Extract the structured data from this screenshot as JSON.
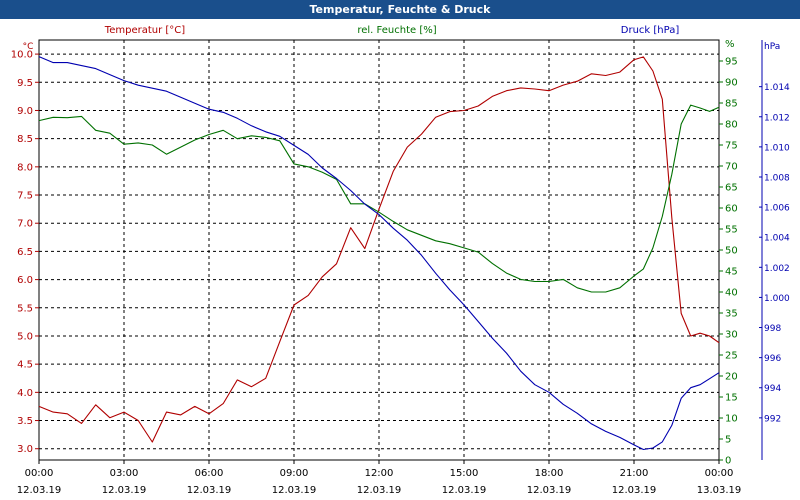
{
  "window": {
    "title": "Temperatur, Feuchte & Druck"
  },
  "colors": {
    "temperature": "#b00000",
    "humidity": "#007000",
    "pressure": "#0000b0",
    "titlebar": "#1a4f8c"
  },
  "chart_data": {
    "type": "line",
    "title": "Temperatur, Feuchte & Druck",
    "x_ticks": [
      {
        "time": "00:00",
        "date": "12.03.19"
      },
      {
        "time": "03:00",
        "date": "12.03.19"
      },
      {
        "time": "06:00",
        "date": "12.03.19"
      },
      {
        "time": "09:00",
        "date": "12.03.19"
      },
      {
        "time": "12:00",
        "date": "12.03.19"
      },
      {
        "time": "15:00",
        "date": "12.03.19"
      },
      {
        "time": "18:00",
        "date": "12.03.19"
      },
      {
        "time": "21:00",
        "date": "12.03.19"
      },
      {
        "time": "00:00",
        "date": "13.03.19"
      }
    ],
    "x_range": [
      "12.03.19 00:00",
      "13.03.19 00:00"
    ],
    "grid": true,
    "axes": {
      "temperature": {
        "label": "Temperatur [°C]",
        "unit": "°C",
        "range": [
          2.8,
          10.25
        ],
        "ticks": [
          "3.0",
          "3.5",
          "4.0",
          "4.5",
          "5.0",
          "5.5",
          "6.0",
          "6.5",
          "7.0",
          "7.5",
          "8.0",
          "8.5",
          "9.0",
          "9.5",
          "10.0"
        ],
        "side": "left"
      },
      "humidity": {
        "label": "rel. Feuchte [%]",
        "unit": "%",
        "range": [
          0,
          100
        ],
        "ticks": [
          "0",
          "5",
          "10",
          "15",
          "20",
          "25",
          "30",
          "35",
          "40",
          "45",
          "50",
          "55",
          "60",
          "65",
          "70",
          "75",
          "80",
          "85",
          "90",
          "95"
        ],
        "side": "right"
      },
      "pressure": {
        "label": "Druck [hPa]",
        "unit": "hPa",
        "range": [
          989.2,
          1017.1
        ],
        "ticks": [
          "992",
          "994",
          "996",
          "998",
          "1.000",
          "1.002",
          "1.004",
          "1.006",
          "1.008",
          "1.010",
          "1.012",
          "1.014"
        ],
        "side": "right"
      }
    },
    "series": [
      {
        "name": "Temperatur [°C]",
        "axis": "temperature",
        "x": [
          "00:00",
          "00:30",
          "01:00",
          "01:30",
          "02:00",
          "02:30",
          "03:00",
          "03:30",
          "04:00",
          "04:30",
          "05:00",
          "05:30",
          "06:00",
          "06:30",
          "07:00",
          "07:30",
          "08:00",
          "08:30",
          "09:00",
          "09:30",
          "10:00",
          "10:30",
          "11:00",
          "11:30",
          "12:00",
          "12:30",
          "13:00",
          "13:30",
          "14:00",
          "14:30",
          "15:00",
          "15:30",
          "16:00",
          "16:30",
          "17:00",
          "17:30",
          "18:00",
          "18:30",
          "19:00",
          "19:30",
          "20:00",
          "20:30",
          "21:00",
          "21:20",
          "21:40",
          "22:00",
          "22:20",
          "22:40",
          "23:00",
          "23:20",
          "23:40",
          "24:00"
        ],
        "values": [
          3.75,
          3.65,
          3.62,
          3.45,
          3.78,
          3.55,
          3.65,
          3.5,
          3.12,
          3.65,
          3.6,
          3.75,
          3.62,
          3.8,
          4.22,
          4.1,
          4.25,
          4.9,
          5.55,
          5.72,
          6.05,
          6.28,
          6.92,
          6.55,
          7.25,
          7.92,
          8.35,
          8.58,
          8.88,
          8.98,
          9.0,
          9.08,
          9.25,
          9.35,
          9.4,
          9.38,
          9.35,
          9.45,
          9.52,
          9.65,
          9.62,
          9.68,
          9.9,
          9.95,
          9.7,
          9.2,
          7.1,
          5.4,
          5.0,
          5.05,
          5.0,
          4.88
        ]
      },
      {
        "name": "rel. Feuchte [%]",
        "axis": "humidity",
        "x": [
          "00:00",
          "00:30",
          "01:00",
          "01:30",
          "02:00",
          "02:30",
          "03:00",
          "03:30",
          "04:00",
          "04:30",
          "05:00",
          "05:30",
          "06:00",
          "06:30",
          "07:00",
          "07:30",
          "08:00",
          "08:30",
          "09:00",
          "09:30",
          "10:00",
          "10:30",
          "11:00",
          "11:30",
          "12:00",
          "12:30",
          "13:00",
          "13:30",
          "14:00",
          "14:30",
          "15:00",
          "15:30",
          "16:00",
          "16:30",
          "17:00",
          "17:30",
          "18:00",
          "18:30",
          "19:00",
          "19:30",
          "20:00",
          "20:30",
          "21:00",
          "21:20",
          "21:40",
          "22:00",
          "22:20",
          "22:40",
          "23:00",
          "23:20",
          "23:40",
          "24:00"
        ],
        "values": [
          80.8,
          81.6,
          81.5,
          81.8,
          78.5,
          77.8,
          75.2,
          75.5,
          75.0,
          72.8,
          74.5,
          76.2,
          77.5,
          78.5,
          76.5,
          77.2,
          76.8,
          76.0,
          70.5,
          69.8,
          68.5,
          66.8,
          61.0,
          61.0,
          59.0,
          56.8,
          54.8,
          53.5,
          52.2,
          51.5,
          50.5,
          49.5,
          46.8,
          44.5,
          43.0,
          42.5,
          42.5,
          43.0,
          41.0,
          40.0,
          40.0,
          41.0,
          43.8,
          45.5,
          50.5,
          58.0,
          68.0,
          80.0,
          84.5,
          83.8,
          83.0,
          84.0
        ]
      },
      {
        "name": "Druck [hPa]",
        "axis": "pressure",
        "x": [
          "00:00",
          "00:30",
          "01:00",
          "01:30",
          "02:00",
          "02:30",
          "03:00",
          "03:30",
          "04:00",
          "04:30",
          "05:00",
          "05:30",
          "06:00",
          "06:30",
          "07:00",
          "07:30",
          "08:00",
          "08:30",
          "09:00",
          "09:30",
          "10:00",
          "10:30",
          "11:00",
          "11:30",
          "12:00",
          "12:30",
          "13:00",
          "13:30",
          "14:00",
          "14:30",
          "15:00",
          "15:30",
          "16:00",
          "16:30",
          "17:00",
          "17:30",
          "18:00",
          "18:30",
          "19:00",
          "19:30",
          "20:00",
          "20:30",
          "21:00",
          "21:20",
          "21:40",
          "22:00",
          "22:20",
          "22:40",
          "23:00",
          "23:20",
          "23:40",
          "24:00"
        ],
        "values": [
          1016.0,
          1015.6,
          1015.6,
          1015.4,
          1015.2,
          1014.8,
          1014.4,
          1014.1,
          1013.9,
          1013.7,
          1013.3,
          1012.9,
          1012.5,
          1012.3,
          1011.9,
          1011.4,
          1011.0,
          1010.7,
          1010.1,
          1009.5,
          1008.6,
          1007.9,
          1007.1,
          1006.2,
          1005.5,
          1004.6,
          1003.8,
          1002.8,
          1001.6,
          1000.5,
          999.5,
          998.4,
          997.3,
          996.3,
          995.1,
          994.2,
          993.7,
          992.9,
          992.3,
          991.6,
          991.1,
          990.7,
          990.2,
          989.9,
          990.0,
          990.4,
          991.5,
          993.3,
          994.0,
          994.2,
          994.6,
          995.0
        ]
      }
    ]
  }
}
